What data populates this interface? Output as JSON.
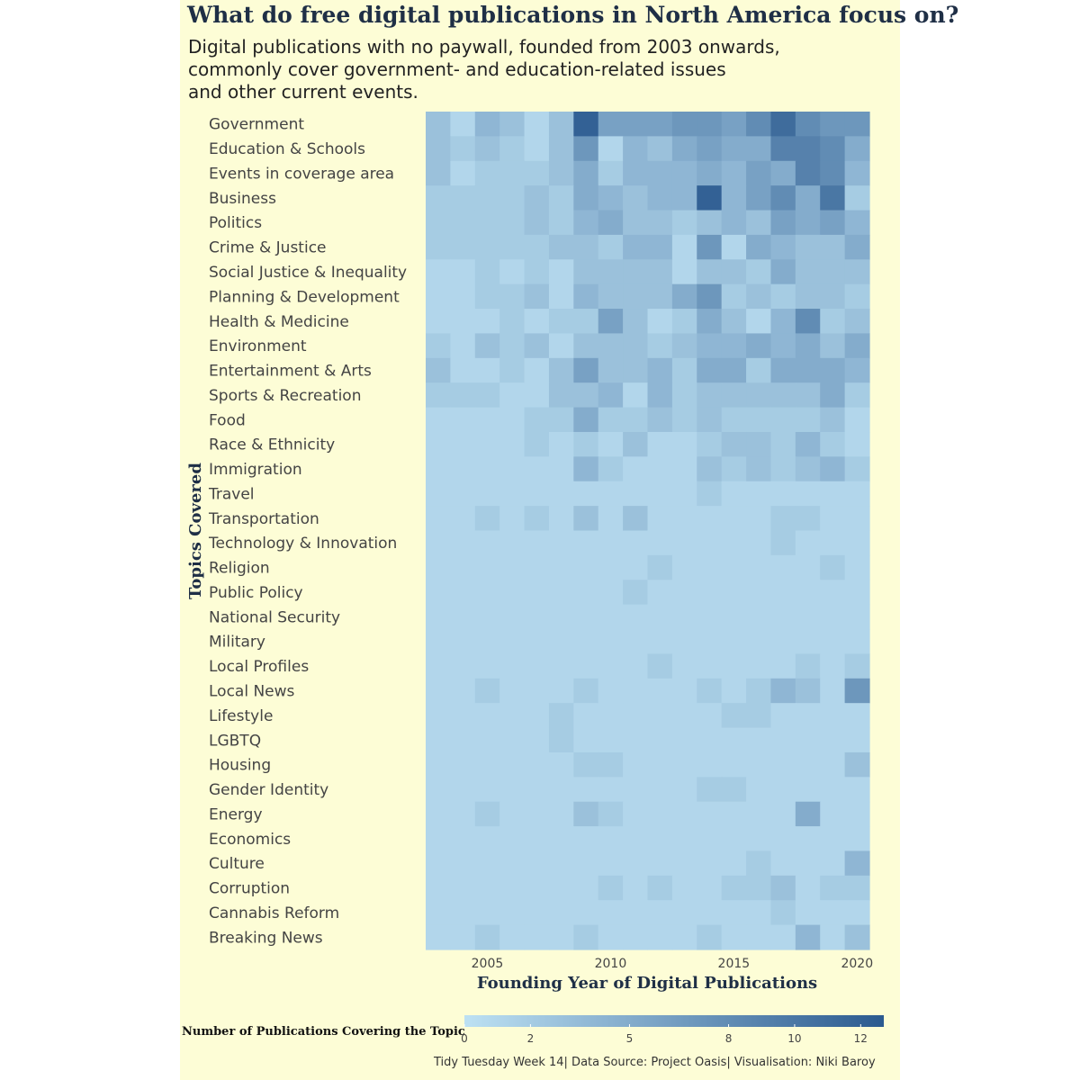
{
  "title": "What do free digital publications in North America focus on?",
  "subtitle_lines": [
    "Digital publications with no paywall, founded from 2003 onwards,",
    "commonly cover government- and education-related issues",
    "and other current events."
  ],
  "caption": "Tidy Tuesday Week 14| Data Source: Project Oasis| Visualisation: Niki Baroy",
  "colors": {
    "background": "#fdfdd6",
    "low": "#bde1f3",
    "high": "#2b5a8f"
  },
  "chart_data": {
    "type": "heatmap",
    "xlabel": "Founding Year of Digital Publications",
    "ylabel": "Topics Covered",
    "x": [
      2003,
      2004,
      2005,
      2006,
      2007,
      2008,
      2009,
      2010,
      2011,
      2012,
      2013,
      2014,
      2015,
      2016,
      2017,
      2018,
      2019,
      2020
    ],
    "x_ticks": [
      2005,
      2010,
      2015,
      2020
    ],
    "y": [
      "Government",
      "Education & Schools",
      "Events in coverage area",
      "Business",
      "Politics",
      "Crime & Justice",
      "Social Justice & Inequality",
      "Planning & Development",
      "Health & Medicine",
      "Environment",
      "Entertainment & Arts",
      "Sports & Recreation",
      "Food",
      "Race & Ethnicity",
      "Immigration",
      "Travel",
      "Transportation",
      "Technology & Innovation",
      "Religion",
      "Public Policy",
      "National Security",
      "Military",
      "Local Profiles",
      "Local News",
      "Lifestyle",
      "LGBTQ",
      "Housing",
      "Gender Identity",
      "Energy",
      "Economics",
      "Culture",
      "Corruption",
      "Cannabis Reform",
      "Breaking News"
    ],
    "z": [
      [
        3,
        1,
        4,
        3,
        1,
        3,
        12,
        6,
        6,
        6,
        7,
        7,
        6,
        8,
        11,
        8,
        7,
        7
      ],
      [
        3,
        2,
        3,
        2,
        1,
        3,
        7,
        1,
        4,
        3,
        5,
        6,
        5,
        5,
        9,
        9,
        8,
        5
      ],
      [
        3,
        1,
        2,
        2,
        2,
        3,
        5,
        2,
        4,
        4,
        4,
        5,
        4,
        6,
        5,
        9,
        8,
        4
      ],
      [
        2,
        2,
        2,
        2,
        3,
        2,
        5,
        4,
        3,
        4,
        4,
        12,
        4,
        6,
        8,
        5,
        10,
        2
      ],
      [
        2,
        2,
        2,
        2,
        3,
        2,
        4,
        5,
        3,
        3,
        2,
        3,
        4,
        3,
        6,
        5,
        6,
        4
      ],
      [
        2,
        2,
        2,
        2,
        2,
        3,
        3,
        2,
        4,
        4,
        1,
        7,
        1,
        5,
        4,
        3,
        3,
        5
      ],
      [
        1,
        1,
        2,
        1,
        2,
        1,
        3,
        3,
        3,
        3,
        1,
        3,
        3,
        2,
        5,
        3,
        3,
        3
      ],
      [
        1,
        1,
        2,
        2,
        3,
        1,
        4,
        3,
        3,
        3,
        5,
        7,
        2,
        3,
        2,
        3,
        3,
        2
      ],
      [
        1,
        1,
        1,
        2,
        1,
        2,
        2,
        6,
        3,
        1,
        2,
        5,
        3,
        1,
        4,
        8,
        2,
        3
      ],
      [
        2,
        1,
        3,
        2,
        3,
        1,
        3,
        3,
        3,
        2,
        3,
        4,
        4,
        5,
        4,
        5,
        3,
        5
      ],
      [
        3,
        1,
        1,
        2,
        1,
        3,
        6,
        3,
        3,
        4,
        2,
        5,
        5,
        2,
        5,
        5,
        5,
        4
      ],
      [
        2,
        2,
        2,
        1,
        1,
        3,
        3,
        4,
        1,
        4,
        2,
        3,
        3,
        3,
        3,
        3,
        5,
        2
      ],
      [
        1,
        1,
        1,
        1,
        2,
        2,
        5,
        2,
        2,
        3,
        2,
        3,
        2,
        2,
        2,
        2,
        3,
        1
      ],
      [
        1,
        1,
        1,
        1,
        2,
        1,
        2,
        1,
        3,
        1,
        1,
        2,
        3,
        3,
        2,
        4,
        2,
        1
      ],
      [
        1,
        1,
        1,
        1,
        1,
        1,
        4,
        2,
        1,
        1,
        1,
        3,
        2,
        3,
        2,
        3,
        4,
        2
      ],
      [
        1,
        1,
        1,
        1,
        1,
        1,
        1,
        1,
        1,
        1,
        1,
        2,
        1,
        1,
        1,
        1,
        1,
        1
      ],
      [
        1,
        1,
        2,
        1,
        2,
        1,
        3,
        1,
        3,
        1,
        1,
        1,
        1,
        1,
        2,
        2,
        1,
        1
      ],
      [
        1,
        1,
        1,
        1,
        1,
        1,
        1,
        1,
        1,
        1,
        1,
        1,
        1,
        1,
        2,
        1,
        1,
        1
      ],
      [
        1,
        1,
        1,
        1,
        1,
        1,
        1,
        1,
        1,
        2,
        1,
        1,
        1,
        1,
        1,
        1,
        2,
        1
      ],
      [
        1,
        1,
        1,
        1,
        1,
        1,
        1,
        1,
        2,
        1,
        1,
        1,
        1,
        1,
        1,
        1,
        1,
        1
      ],
      [
        1,
        1,
        1,
        1,
        1,
        1,
        1,
        1,
        1,
        1,
        1,
        1,
        1,
        1,
        1,
        1,
        1,
        1
      ],
      [
        1,
        1,
        1,
        1,
        1,
        1,
        1,
        1,
        1,
        1,
        1,
        1,
        1,
        1,
        1,
        1,
        1,
        1
      ],
      [
        1,
        1,
        1,
        1,
        1,
        1,
        1,
        1,
        1,
        2,
        1,
        1,
        1,
        1,
        1,
        2,
        1,
        2
      ],
      [
        1,
        1,
        2,
        1,
        1,
        1,
        2,
        1,
        1,
        1,
        1,
        2,
        1,
        2,
        4,
        3,
        1,
        7
      ],
      [
        1,
        1,
        1,
        1,
        1,
        2,
        1,
        1,
        1,
        1,
        1,
        1,
        2,
        2,
        1,
        1,
        1,
        1
      ],
      [
        1,
        1,
        1,
        1,
        1,
        2,
        1,
        1,
        1,
        1,
        1,
        1,
        1,
        1,
        1,
        1,
        1,
        1
      ],
      [
        1,
        1,
        1,
        1,
        1,
        1,
        2,
        2,
        1,
        1,
        1,
        1,
        1,
        1,
        1,
        1,
        1,
        3
      ],
      [
        1,
        1,
        1,
        1,
        1,
        1,
        1,
        1,
        1,
        1,
        1,
        2,
        2,
        1,
        1,
        1,
        1,
        1
      ],
      [
        1,
        1,
        2,
        1,
        1,
        1,
        3,
        2,
        1,
        1,
        1,
        1,
        1,
        1,
        1,
        5,
        1,
        1
      ],
      [
        1,
        1,
        1,
        1,
        1,
        1,
        1,
        1,
        1,
        1,
        1,
        1,
        1,
        1,
        1,
        1,
        1,
        1
      ],
      [
        1,
        1,
        1,
        1,
        1,
        1,
        1,
        1,
        1,
        1,
        1,
        1,
        1,
        2,
        1,
        1,
        1,
        4
      ],
      [
        1,
        1,
        1,
        1,
        1,
        1,
        1,
        2,
        1,
        2,
        1,
        1,
        2,
        2,
        3,
        1,
        2,
        2
      ],
      [
        1,
        1,
        1,
        1,
        1,
        1,
        1,
        1,
        1,
        1,
        1,
        1,
        1,
        1,
        2,
        1,
        1,
        1
      ],
      [
        1,
        1,
        2,
        1,
        1,
        1,
        2,
        1,
        1,
        1,
        1,
        2,
        1,
        1,
        1,
        4,
        1,
        3
      ]
    ],
    "zlim": [
      0,
      12.7
    ],
    "legend": {
      "title": "Number of Publications Covering the Topic",
      "ticks": [
        0,
        2,
        5,
        8,
        10,
        12
      ],
      "placement": "bottom"
    }
  }
}
